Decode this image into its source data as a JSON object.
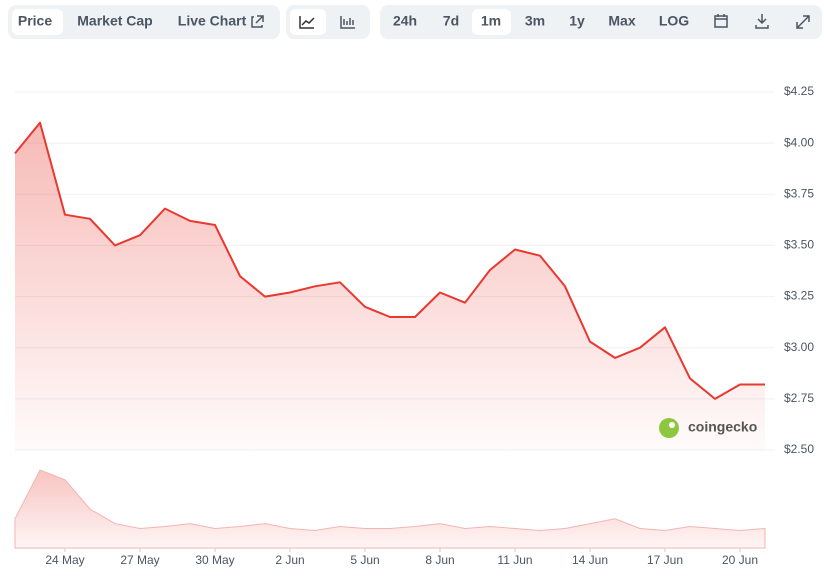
{
  "toolbar": {
    "tabs": [
      "Price",
      "Market Cap",
      "Live Chart"
    ],
    "ranges": [
      "24h",
      "7d",
      "1m",
      "3m",
      "1y",
      "Max",
      "LOG"
    ]
  },
  "watermark": "coingecko",
  "chart_data": {
    "type": "area",
    "color": "#e8382f",
    "x": [
      "22 May",
      "23 May",
      "24 May",
      "25 May",
      "26 May",
      "27 May",
      "28 May",
      "29 May",
      "30 May",
      "31 May",
      "1 Jun",
      "2 Jun",
      "3 Jun",
      "4 Jun",
      "5 Jun",
      "6 Jun",
      "7 Jun",
      "8 Jun",
      "9 Jun",
      "10 Jun",
      "11 Jun",
      "12 Jun",
      "13 Jun",
      "14 Jun",
      "15 Jun",
      "16 Jun",
      "17 Jun",
      "18 Jun",
      "19 Jun",
      "20 Jun",
      "21 Jun"
    ],
    "values": [
      3.95,
      4.1,
      3.65,
      3.63,
      3.5,
      3.55,
      3.68,
      3.62,
      3.6,
      3.35,
      3.25,
      3.27,
      3.3,
      3.32,
      3.2,
      3.15,
      3.15,
      3.27,
      3.22,
      3.38,
      3.48,
      3.45,
      3.3,
      3.03,
      2.95,
      3.0,
      3.1,
      2.85,
      2.75,
      2.82,
      2.82
    ],
    "volume": [
      30,
      80,
      70,
      40,
      25,
      20,
      22,
      25,
      20,
      22,
      25,
      20,
      18,
      22,
      20,
      20,
      22,
      25,
      20,
      22,
      20,
      18,
      20,
      25,
      30,
      20,
      18,
      22,
      20,
      18,
      20
    ],
    "ylim": [
      2.5,
      4.25
    ],
    "yticks": [
      {
        "value": 2.5,
        "label": "$2.50"
      },
      {
        "value": 2.75,
        "label": "$2.75"
      },
      {
        "value": 3.0,
        "label": "$3.00"
      },
      {
        "value": 3.25,
        "label": "$3.25"
      },
      {
        "value": 3.5,
        "label": "$3.50"
      },
      {
        "value": 3.75,
        "label": "$3.75"
      },
      {
        "value": 4.0,
        "label": "$4.00"
      },
      {
        "value": 4.25,
        "label": "$4.25"
      }
    ],
    "xticks": [
      "24 May",
      "27 May",
      "30 May",
      "2 Jun",
      "5 Jun",
      "8 Jun",
      "11 Jun",
      "14 Jun",
      "17 Jun",
      "20 Jun"
    ],
    "grid": true
  }
}
